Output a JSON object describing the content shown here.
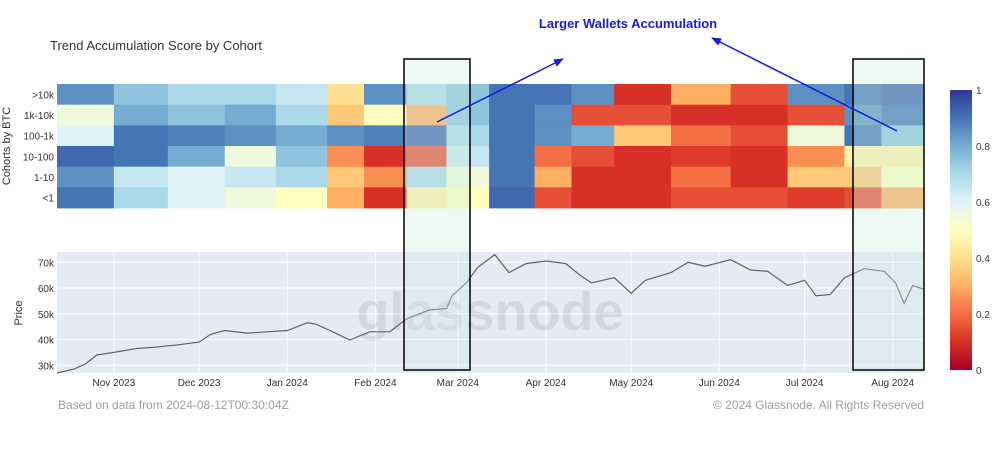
{
  "chart_data": [
    {
      "type": "heatmap",
      "title": "Trend Accumulation Score by Cohort",
      "ylabel": "Cohorts by BTC",
      "rows": [
        ">10k",
        "1k-10k",
        "100-1k",
        "10-100",
        "1-10",
        "<1"
      ],
      "x_range": [
        "2023-10-12",
        "2024-08-12"
      ],
      "colorbar": {
        "min": 0,
        "max": 1,
        "ticks": [
          0,
          0.2,
          0.4,
          0.6,
          0.8,
          1
        ]
      },
      "colorscale": [
        "#a50026",
        "#d73027",
        "#f46d43",
        "#fdae61",
        "#fee090",
        "#ffffbf",
        "#e0f3f8",
        "#abd9e9",
        "#74add1",
        "#4575b4",
        "#313695"
      ],
      "segments": [
        {
          "x0": "2023-10-12",
          "x1": "2023-11-01",
          "values": [
            0.85,
            0.55,
            0.6,
            0.92,
            0.85,
            0.9
          ]
        },
        {
          "x0": "2023-11-01",
          "x1": "2023-11-20",
          "values": [
            0.75,
            0.8,
            0.9,
            0.9,
            0.65,
            0.7
          ]
        },
        {
          "x0": "2023-11-20",
          "x1": "2023-12-10",
          "values": [
            0.7,
            0.75,
            0.88,
            0.8,
            0.6,
            0.6
          ]
        },
        {
          "x0": "2023-12-10",
          "x1": "2023-12-28",
          "values": [
            0.7,
            0.8,
            0.85,
            0.55,
            0.65,
            0.55
          ]
        },
        {
          "x0": "2023-12-28",
          "x1": "2024-01-15",
          "values": [
            0.65,
            0.7,
            0.8,
            0.75,
            0.7,
            0.5
          ]
        },
        {
          "x0": "2024-01-15",
          "x1": "2024-01-28",
          "values": [
            0.4,
            0.35,
            0.85,
            0.25,
            0.35,
            0.3
          ]
        },
        {
          "x0": "2024-01-28",
          "x1": "2024-02-12",
          "values": [
            0.85,
            0.5,
            0.88,
            0.1,
            0.25,
            0.1
          ]
        },
        {
          "x0": "2024-02-12",
          "x1": "2024-02-26",
          "values": [
            0.7,
            0.3,
            0.92,
            0.15,
            0.7,
            0.45
          ]
        },
        {
          "x0": "2024-02-26",
          "x1": "2024-03-12",
          "values": [
            0.75,
            0.75,
            0.7,
            0.65,
            0.55,
            0.5
          ]
        },
        {
          "x0": "2024-03-12",
          "x1": "2024-03-28",
          "values": [
            0.9,
            0.9,
            0.9,
            0.9,
            0.9,
            0.92
          ]
        },
        {
          "x0": "2024-03-28",
          "x1": "2024-04-10",
          "values": [
            0.9,
            0.85,
            0.85,
            0.2,
            0.3,
            0.15
          ]
        },
        {
          "x0": "2024-04-10",
          "x1": "2024-04-25",
          "values": [
            0.85,
            0.15,
            0.8,
            0.15,
            0.1,
            0.1
          ]
        },
        {
          "x0": "2024-04-25",
          "x1": "2024-05-15",
          "values": [
            0.1,
            0.15,
            0.35,
            0.1,
            0.1,
            0.1
          ]
        },
        {
          "x0": "2024-05-15",
          "x1": "2024-06-05",
          "values": [
            0.3,
            0.1,
            0.2,
            0.12,
            0.2,
            0.15
          ]
        },
        {
          "x0": "2024-06-05",
          "x1": "2024-06-25",
          "values": [
            0.15,
            0.1,
            0.15,
            0.1,
            0.1,
            0.15
          ]
        },
        {
          "x0": "2024-06-25",
          "x1": "2024-07-15",
          "values": [
            0.85,
            0.15,
            0.55,
            0.25,
            0.35,
            0.12
          ]
        },
        {
          "x0": "2024-07-15",
          "x1": "2024-07-28",
          "values": [
            0.9,
            0.85,
            0.9,
            0.45,
            0.35,
            0.15
          ]
        },
        {
          "x0": "2024-07-28",
          "x1": "2024-08-12",
          "values": [
            0.92,
            0.9,
            0.75,
            0.45,
            0.5,
            0.3
          ]
        }
      ]
    },
    {
      "type": "line",
      "ylabel": "Price",
      "x_ticks": [
        "Nov 2023",
        "Dec 2023",
        "Jan 2024",
        "Feb 2024",
        "Mar 2024",
        "Apr 2024",
        "May 2024",
        "Jun 2024",
        "Jul 2024",
        "Aug 2024"
      ],
      "y_ticks": [
        "30k",
        "40k",
        "50k",
        "60k",
        "70k"
      ],
      "ylim": [
        27000,
        74000
      ],
      "series": [
        {
          "x": [
            "2023-10-12",
            "2023-10-18",
            "2023-10-22",
            "2023-10-26",
            "2023-11-01",
            "2023-11-09",
            "2023-11-15",
            "2023-11-24",
            "2023-12-01",
            "2023-12-05",
            "2023-12-10",
            "2023-12-18",
            "2023-12-25",
            "2024-01-01",
            "2024-01-08",
            "2024-01-11",
            "2024-01-17",
            "2024-01-23",
            "2024-01-30",
            "2024-02-06",
            "2024-02-12",
            "2024-02-20",
            "2024-02-26",
            "2024-02-28",
            "2024-03-04",
            "2024-03-08",
            "2024-03-14",
            "2024-03-19",
            "2024-03-25",
            "2024-04-01",
            "2024-04-08",
            "2024-04-13",
            "2024-04-17",
            "2024-04-25",
            "2024-05-01",
            "2024-05-06",
            "2024-05-15",
            "2024-05-21",
            "2024-05-27",
            "2024-06-05",
            "2024-06-12",
            "2024-06-18",
            "2024-06-25",
            "2024-07-01",
            "2024-07-05",
            "2024-07-10",
            "2024-07-15",
            "2024-07-22",
            "2024-07-29",
            "2024-08-02",
            "2024-08-05",
            "2024-08-08",
            "2024-08-12"
          ],
          "values": [
            27000,
            28500,
            30500,
            34000,
            35000,
            36500,
            37000,
            38000,
            39000,
            42000,
            43500,
            42500,
            43000,
            43500,
            46500,
            46000,
            43000,
            39800,
            43000,
            43000,
            48000,
            51500,
            52000,
            57000,
            62000,
            68000,
            73000,
            66000,
            69500,
            70500,
            69500,
            65000,
            62000,
            64000,
            58000,
            63000,
            66000,
            70000,
            68500,
            71000,
            67000,
            66500,
            61000,
            63000,
            57000,
            57500,
            64000,
            67500,
            66500,
            62000,
            54000,
            61000,
            59500
          ]
        }
      ]
    }
  ],
  "annotation": {
    "text": "Larger Wallets Accumulation"
  },
  "footer": {
    "left": "Based on data from 2024-08-12T00:30:04Z",
    "right": "© 2024 Glassnode. All Rights Reserved"
  },
  "watermark": "glassnode",
  "colors": {
    "plot_bg": "#e6eaf5",
    "line": "#5f6368",
    "highlight": "#cfeee2",
    "annotation": "#1a1adc"
  }
}
